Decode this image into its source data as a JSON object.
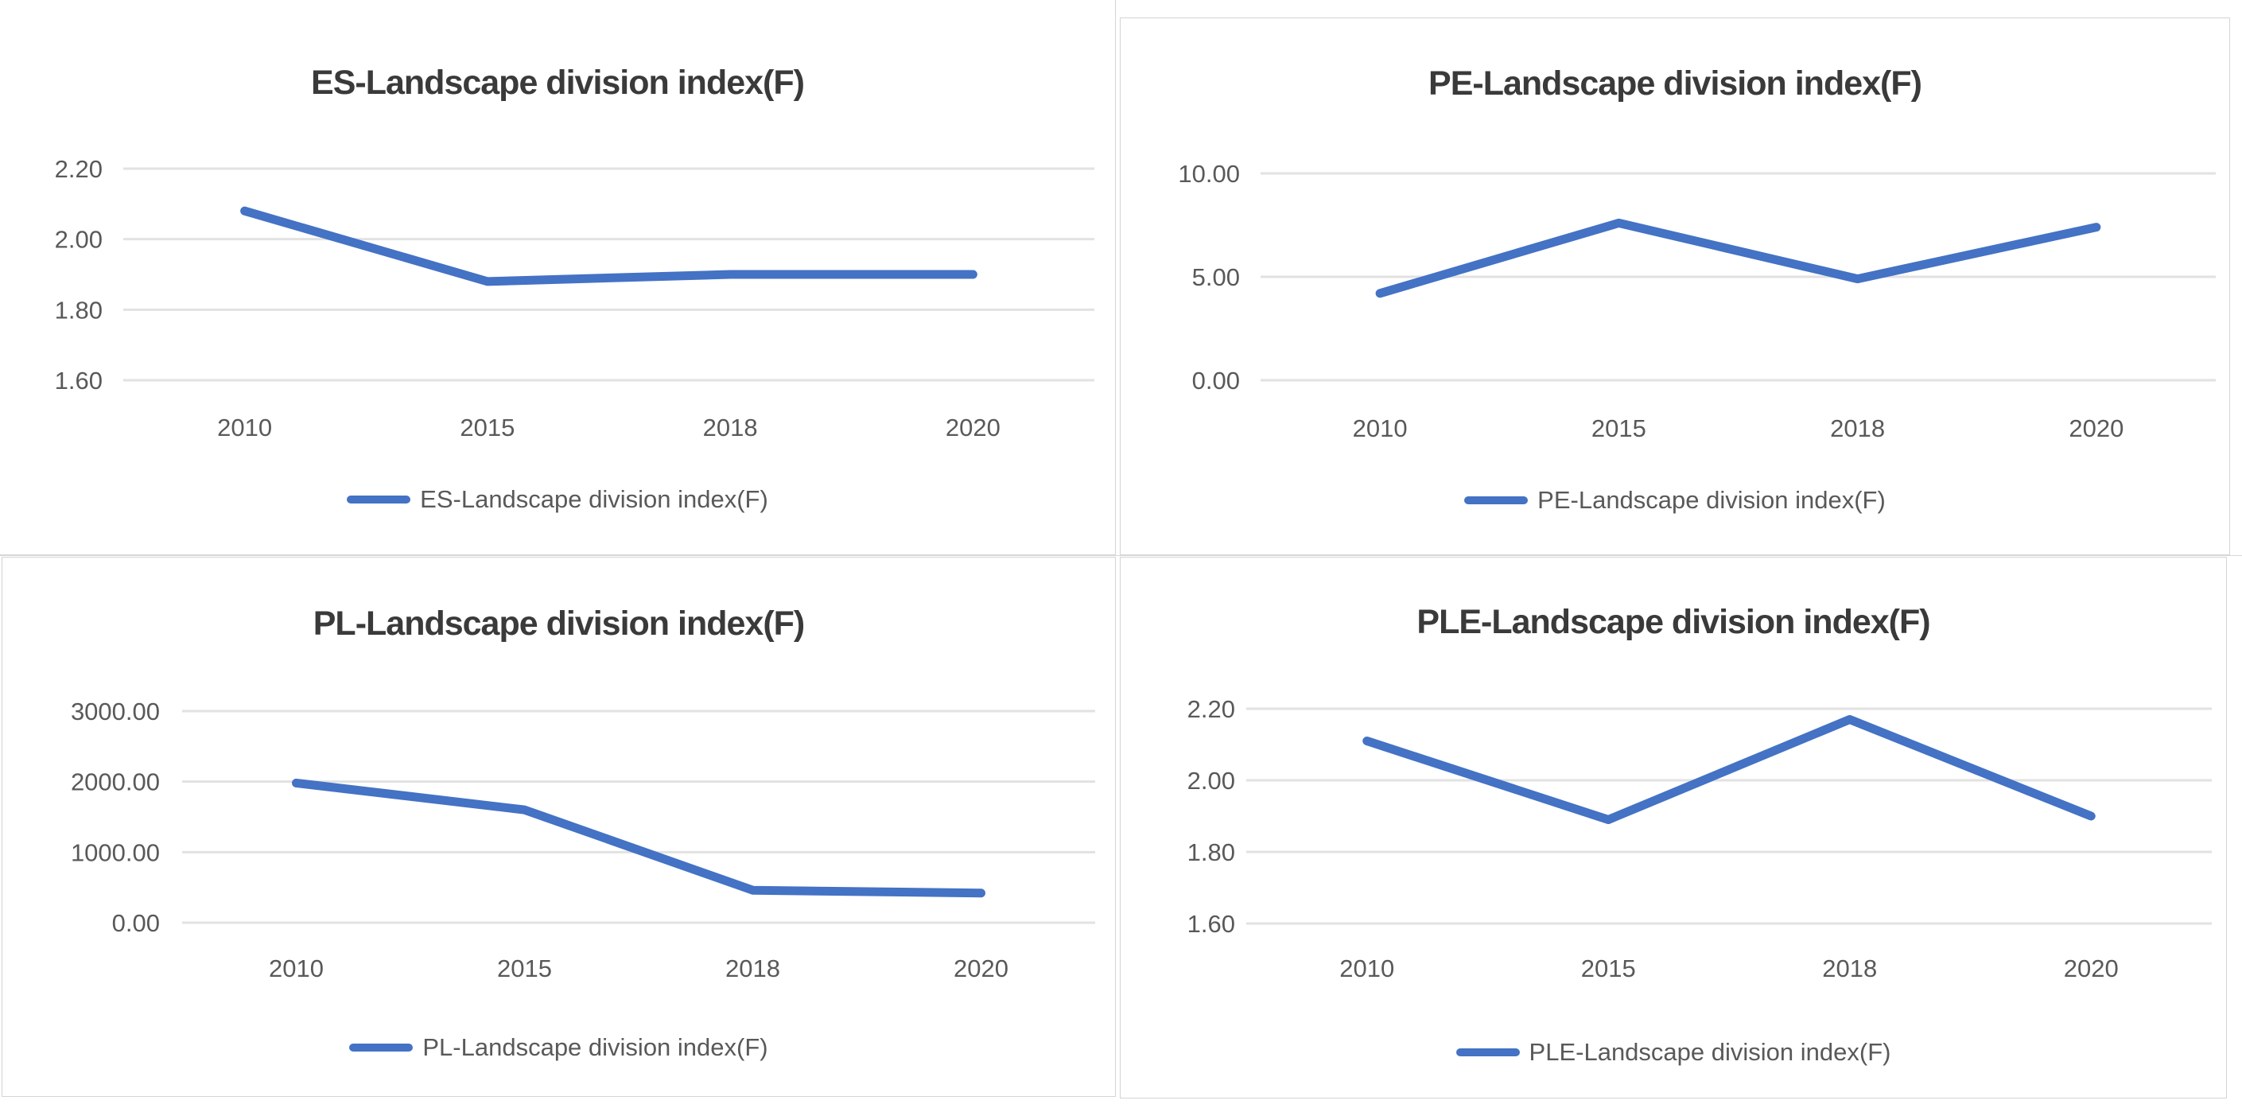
{
  "colors": {
    "series_line": "#4472C4",
    "gridline": "#e2e2e2",
    "axis_text": "#595959",
    "title_text": "#3a3a3a",
    "panel_border": "#d4d4d4",
    "background": "#ffffff"
  },
  "chart_data": [
    {
      "id": "es",
      "type": "line",
      "title": "ES-Landscape division index(F)",
      "categories": [
        "2010",
        "2015",
        "2018",
        "2020"
      ],
      "series": [
        {
          "name": "ES-Landscape division index(F)",
          "values": [
            2.08,
            1.88,
            1.9,
            1.9
          ]
        }
      ],
      "ylim": [
        1.6,
        2.2
      ],
      "yticks": [
        {
          "label": "2.20",
          "value": 2.2
        },
        {
          "label": "2.00",
          "value": 2.0
        },
        {
          "label": "1.80",
          "value": 1.8
        },
        {
          "label": "1.60",
          "value": 1.6
        }
      ],
      "xlabel": "",
      "ylabel": "",
      "grid": true,
      "legend_position": "bottom"
    },
    {
      "id": "pe",
      "type": "line",
      "title": "PE-Landscape division index(F)",
      "categories": [
        "2010",
        "2015",
        "2018",
        "2020"
      ],
      "series": [
        {
          "name": "PE-Landscape division index(F)",
          "values": [
            4.2,
            7.6,
            4.9,
            7.4
          ]
        }
      ],
      "ylim": [
        0.0,
        10.0
      ],
      "yticks": [
        {
          "label": "10.00",
          "value": 10.0
        },
        {
          "label": "5.00",
          "value": 5.0
        },
        {
          "label": "0.00",
          "value": 0.0
        }
      ],
      "xlabel": "",
      "ylabel": "",
      "grid": true,
      "legend_position": "bottom"
    },
    {
      "id": "pl",
      "type": "line",
      "title": "PL-Landscape division index(F)",
      "categories": [
        "2010",
        "2015",
        "2018",
        "2020"
      ],
      "series": [
        {
          "name": "PL-Landscape division index(F)",
          "values": [
            1980,
            1600,
            460,
            420
          ]
        }
      ],
      "ylim": [
        0,
        3000
      ],
      "yticks": [
        {
          "label": "3000.00",
          "value": 3000
        },
        {
          "label": "2000.00",
          "value": 2000
        },
        {
          "label": "1000.00",
          "value": 1000
        },
        {
          "label": "0.00",
          "value": 0
        }
      ],
      "xlabel": "",
      "ylabel": "",
      "grid": true,
      "legend_position": "bottom"
    },
    {
      "id": "ple",
      "type": "line",
      "title": "PLE-Landscape division index(F)",
      "categories": [
        "2010",
        "2015",
        "2018",
        "2020"
      ],
      "series": [
        {
          "name": "PLE-Landscape division index(F)",
          "values": [
            2.11,
            1.89,
            2.17,
            1.9
          ]
        }
      ],
      "ylim": [
        1.6,
        2.2
      ],
      "yticks": [
        {
          "label": "2.20",
          "value": 2.2
        },
        {
          "label": "2.00",
          "value": 2.0
        },
        {
          "label": "1.80",
          "value": 1.8
        },
        {
          "label": "1.60",
          "value": 1.6
        }
      ],
      "xlabel": "",
      "ylabel": "",
      "grid": true,
      "legend_position": "bottom"
    }
  ]
}
